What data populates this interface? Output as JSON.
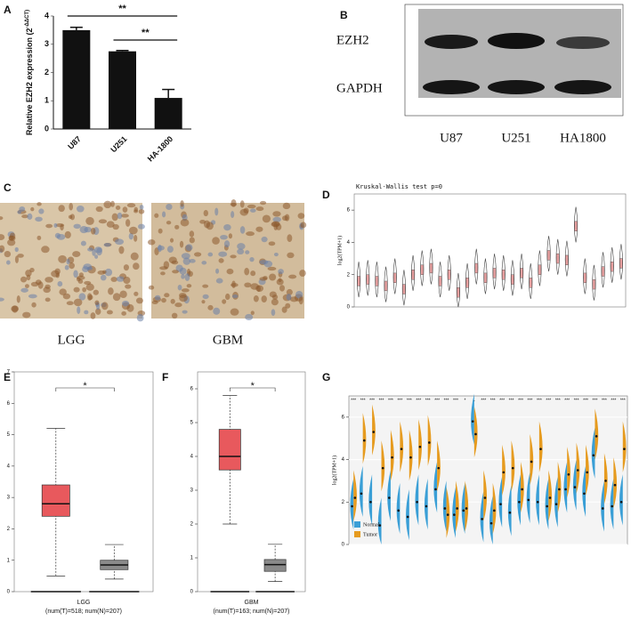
{
  "blot": {
    "label": "B",
    "rows": [
      "EZH2",
      "GAPDH"
    ],
    "lanes": [
      "U87",
      "U251",
      "HA1800"
    ]
  },
  "histology": {
    "label": "C",
    "images": [
      "LGG",
      "GBM"
    ]
  },
  "chart_data": [
    {
      "type": "bar",
      "label": "A",
      "ylabel": "Relative EZH2 expression (2",
      "ylabel_sup": "-ΔΔCT)",
      "categories": [
        "U87",
        "U251",
        "HA-1800"
      ],
      "values": [
        3.5,
        2.75,
        1.1
      ],
      "errors": [
        0.1,
        0.03,
        0.3
      ],
      "color": "#111111",
      "ylim": [
        0,
        4
      ],
      "yticks": [
        0,
        1,
        2,
        3,
        4
      ],
      "annotations": [
        "**",
        "**"
      ]
    },
    {
      "type": "violin",
      "label": "D",
      "title": "Kruskal-Wallis test p=0",
      "ylabel": "log2(TPM+1)",
      "categories": [
        null,
        null,
        null,
        null,
        null,
        null,
        null,
        null,
        null,
        null,
        null,
        null,
        null,
        null,
        null,
        null,
        null,
        null,
        null,
        null,
        null,
        null,
        null,
        null,
        null,
        null,
        null,
        null,
        null,
        null
      ],
      "values": [
        1.6,
        1.7,
        1.6,
        1.3,
        1.8,
        1.1,
        2.0,
        2.3,
        2.4,
        1.6,
        2.0,
        0.9,
        1.5,
        2.4,
        1.8,
        2.1,
        2.0,
        1.7,
        2.1,
        1.5,
        2.3,
        3.2,
        3.0,
        2.9,
        5.0,
        1.8,
        1.4,
        2.2,
        2.5,
        2.7
      ],
      "color": "#e8a0a0",
      "ylim": [
        0,
        7
      ],
      "yticks": [
        0,
        2,
        4,
        6
      ]
    },
    {
      "type": "box",
      "label": "E",
      "xlabel": "LGG",
      "note": "(num(T)=518; num(N)=207)",
      "annotations": [
        "*"
      ],
      "boxes": [
        {
          "color": "#e8595d",
          "low": 0.5,
          "q1": 2.4,
          "median": 2.8,
          "q3": 3.4,
          "high": 5.2
        },
        {
          "color": "#8a8a8a",
          "low": 0.4,
          "q1": 0.7,
          "median": 0.85,
          "q3": 1.0,
          "high": 1.5
        }
      ],
      "ylim": [
        0,
        7
      ],
      "yticks": [
        0,
        1,
        2,
        3,
        4,
        5,
        6,
        7
      ]
    },
    {
      "type": "box",
      "label": "F",
      "xlabel": "GBM",
      "note": "(num(T)=163; num(N)=207)",
      "annotations": [
        "*"
      ],
      "boxes": [
        {
          "color": "#e8595d",
          "low": 2.0,
          "q1": 3.6,
          "median": 4.0,
          "q3": 4.8,
          "high": 5.8
        },
        {
          "color": "#8a8a8a",
          "low": 0.3,
          "q1": 0.6,
          "median": 0.8,
          "q3": 0.95,
          "high": 1.4
        }
      ],
      "ylim": [
        0,
        6.5
      ],
      "yticks": [
        0,
        1,
        2,
        3,
        4,
        5,
        6
      ]
    },
    {
      "type": "split_violin",
      "label": "G",
      "ylabel": "log2(TPM+1)",
      "categories": [
        null,
        null,
        null,
        null,
        null,
        null,
        null,
        null,
        null,
        null,
        null,
        null,
        null,
        null,
        null,
        null,
        null,
        null,
        null,
        null,
        null,
        null,
        null,
        null,
        null,
        null,
        null,
        null,
        null,
        null
      ],
      "annotations": [
        "***",
        "***",
        "***",
        "***",
        "***",
        "***",
        "***",
        "***",
        "***",
        "***",
        "***",
        "***",
        "*",
        "-",
        "***",
        "***",
        "***",
        "***",
        "***",
        "***",
        "***",
        "***",
        "***",
        "***",
        "***",
        "***",
        "***",
        "***",
        "***",
        "***"
      ],
      "series": [
        {
          "name": "Normal",
          "color": "#3a9fd6",
          "values": [
            1.8,
            2.4,
            2.0,
            0.9,
            2.2,
            1.6,
            1.3,
            2.0,
            1.8,
            2.6,
            1.7,
            1.4,
            1.6,
            5.8,
            1.2,
            1.0,
            1.9,
            1.5,
            2.0,
            2.1,
            2.0,
            1.8,
            1.9,
            2.6,
            2.7,
            2.4,
            4.2,
            1.7,
            1.8,
            2.0
          ]
        },
        {
          "name": "Tumor",
          "color": "#e69b1f",
          "values": [
            2.2,
            4.9,
            5.3,
            3.6,
            4.1,
            4.5,
            4.1,
            4.6,
            4.8,
            3.6,
            1.4,
            1.7,
            1.7,
            5.2,
            2.2,
            1.6,
            3.4,
            3.6,
            2.6,
            3.9,
            4.5,
            2.2,
            2.6,
            3.3,
            3.5,
            3.4,
            5.1,
            3.0,
            2.8,
            4.5
          ]
        }
      ],
      "ylim": [
        0,
        7
      ],
      "yticks": [
        0,
        2,
        4,
        6
      ]
    }
  ]
}
